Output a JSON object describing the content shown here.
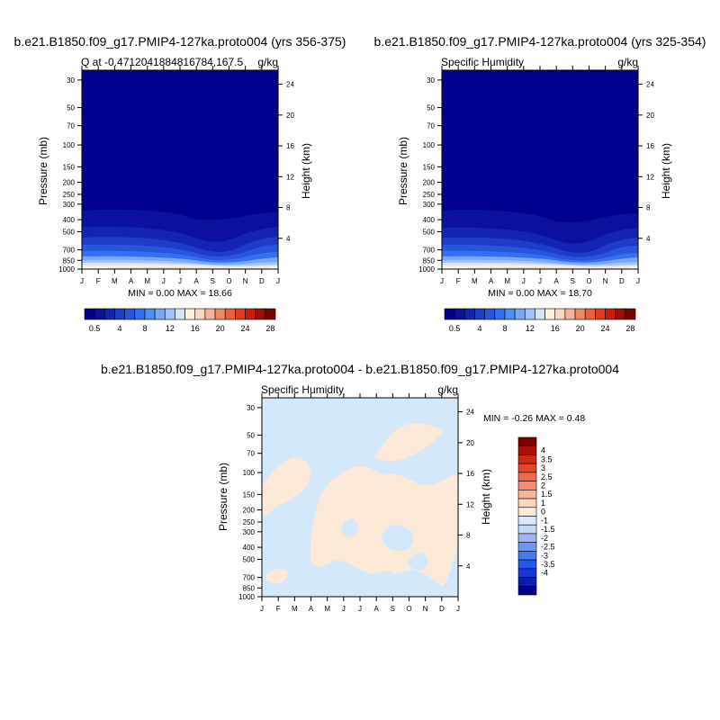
{
  "colors": {
    "sequential_palette": [
      "#00008c",
      "#0b119e",
      "#1424b2",
      "#1f3cc8",
      "#2955de",
      "#3370f0",
      "#4f8cf6",
      "#7aa6f6",
      "#a4c2f6",
      "#d2e6fa",
      "#fff0dc",
      "#fcd6c0",
      "#f7b298",
      "#f2866a",
      "#ec5e40",
      "#e23a1e",
      "#c81e0e",
      "#a00c06",
      "#7a0000"
    ],
    "diverging_palette": [
      "#00008c",
      "#0b1eb0",
      "#1638cf",
      "#2258ec",
      "#4479f4",
      "#6e97f4",
      "#9db7f6",
      "#c6d8f8",
      "#dbeafb",
      "#fde9d8",
      "#fad7bd",
      "#f7b698",
      "#f2906e",
      "#ec6c48",
      "#e4482a",
      "#cd2a14",
      "#a81008",
      "#7a0000"
    ],
    "diff_negative_fill": "#d4e8fc",
    "diff_positive_fill": "#fde9d8"
  },
  "chart_data": [
    {
      "type": "contour",
      "title": "b.e21.B1850.f09_g17.PMIP4-127ka.proto004 (yrs 356-375)",
      "left_string": "Q at -0.4712041884816784,167.5",
      "right_string": "g/kg",
      "xlabel": "",
      "ylabel": "Pressure (mb)",
      "ylabel_right": "Height (km)",
      "x_ticks": [
        "J",
        "F",
        "M",
        "A",
        "M",
        "J",
        "J",
        "A",
        "S",
        "O",
        "N",
        "D",
        "J"
      ],
      "y_ticks": [
        "30",
        "50",
        "70",
        "100",
        "150",
        "200",
        "250",
        "300",
        "400",
        "500",
        "700",
        "850",
        "1000"
      ],
      "y_tick_values": [
        30,
        50,
        70,
        100,
        150,
        200,
        250,
        300,
        400,
        500,
        700,
        850,
        1000
      ],
      "right_ticks": [
        "24",
        "20",
        "16",
        "12",
        "8",
        "4"
      ],
      "right_tick_values": [
        24,
        20,
        16,
        12,
        8,
        4
      ],
      "ylim": [
        1000,
        25
      ],
      "log_y": true,
      "stats": "MIN =   0.00 MAX =  18.66",
      "colorbar_labels": [
        "0.5",
        "4",
        "8",
        "12",
        "16",
        "20",
        "24",
        "28"
      ]
    },
    {
      "type": "contour",
      "title": "b.e21.B1850.f09_g17.PMIP4-127ka.proto004 (yrs 325-354)",
      "left_string": "Specific Humidity",
      "right_string": "g/kg",
      "xlabel": "",
      "ylabel": "Pressure (mb)",
      "ylabel_right": "Height (km)",
      "x_ticks": [
        "J",
        "F",
        "M",
        "A",
        "M",
        "J",
        "J",
        "A",
        "S",
        "O",
        "N",
        "D",
        "J"
      ],
      "y_ticks": [
        "30",
        "50",
        "70",
        "100",
        "150",
        "200",
        "250",
        "300",
        "400",
        "500",
        "700",
        "850",
        "1000"
      ],
      "y_tick_values": [
        30,
        50,
        70,
        100,
        150,
        200,
        250,
        300,
        400,
        500,
        700,
        850,
        1000
      ],
      "right_ticks": [
        "24",
        "20",
        "16",
        "12",
        "8",
        "4"
      ],
      "right_tick_values": [
        24,
        20,
        16,
        12,
        8,
        4
      ],
      "ylim": [
        1000,
        25
      ],
      "log_y": true,
      "stats": "MIN =   0.00 MAX =  18.70",
      "colorbar_labels": [
        "0.5",
        "4",
        "8",
        "12",
        "16",
        "20",
        "24",
        "28"
      ]
    },
    {
      "type": "contour",
      "title": "b.e21.B1850.f09_g17.PMIP4-127ka.proto004 - b.e21.B1850.f09_g17.PMIP4-127ka.proto004",
      "left_string": "Specific Humidity",
      "right_string": "g/kg",
      "xlabel": "",
      "ylabel": "Pressure (mb)",
      "ylabel_right": "Height (km)",
      "x_ticks": [
        "J",
        "F",
        "M",
        "A",
        "M",
        "J",
        "J",
        "A",
        "S",
        "O",
        "N",
        "D",
        "J"
      ],
      "y_ticks": [
        "30",
        "50",
        "70",
        "100",
        "150",
        "200",
        "250",
        "300",
        "400",
        "500",
        "700",
        "850",
        "1000"
      ],
      "y_tick_values": [
        30,
        50,
        70,
        100,
        150,
        200,
        250,
        300,
        400,
        500,
        700,
        850,
        1000
      ],
      "right_ticks": [
        "24",
        "20",
        "16",
        "12",
        "8",
        "4"
      ],
      "right_tick_values": [
        24,
        20,
        16,
        12,
        8,
        4
      ],
      "ylim": [
        1000,
        25
      ],
      "log_y": true,
      "stats": "MIN =  -0.26 MAX =   0.48",
      "colorbar_labels": [
        "4",
        "3.5",
        "3",
        "2.5",
        "2",
        "1.5",
        "1",
        "0",
        "-1",
        "-1.5",
        "-2",
        "-2.5",
        "-3",
        "-3.5",
        "-4"
      ]
    }
  ]
}
